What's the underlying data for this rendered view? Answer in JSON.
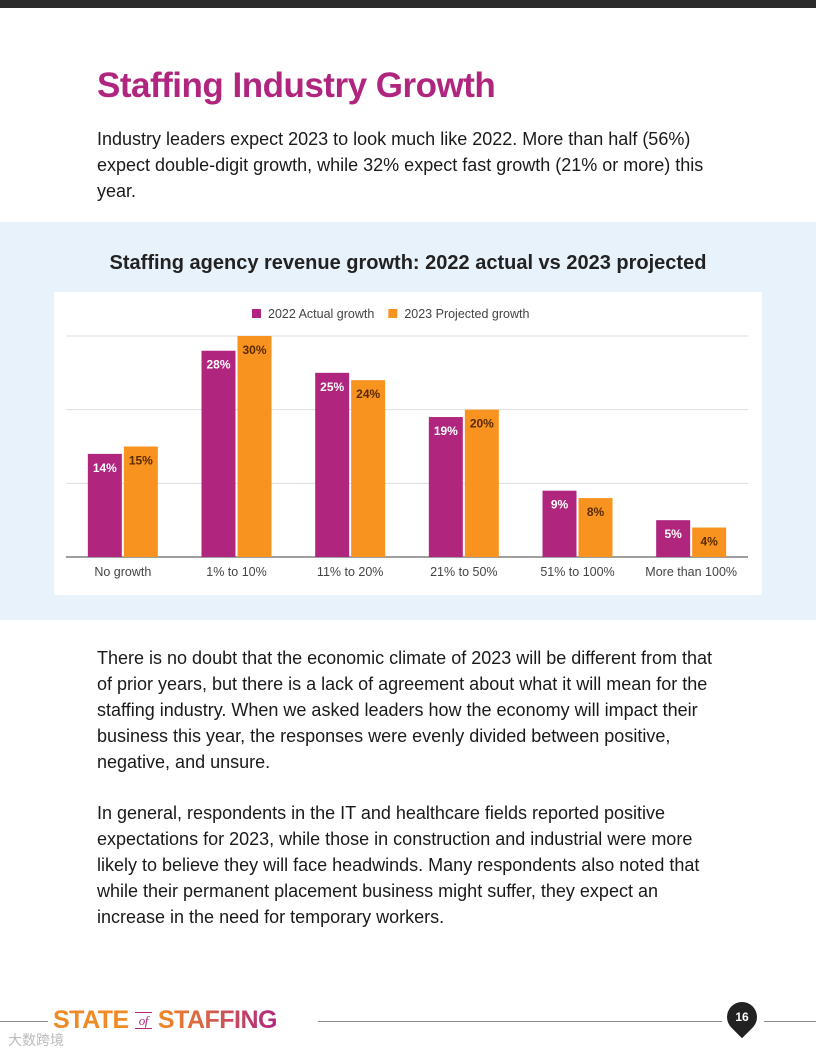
{
  "title": "Staffing Industry Growth",
  "intro": "Industry leaders expect 2023 to look much like 2022. More than half (56%) expect double-digit growth, while 32% expect fast growth (21% or more) this year.",
  "paragraphs": [
    "There is no doubt that the economic climate of 2023 will be different from that of prior years, but there is a lack of agreement about what it will mean for the staffing industry. When we asked leaders how the economy will impact their business this year, the responses were evenly divided between positive, negative, and unsure.",
    "In general, respondents in the IT and healthcare fields reported positive expectations for 2023, while those in construction and industrial were more likely to believe they will face headwinds. Many respondents also noted that while their permanent placement business might suffer, they expect an increase in the need for temporary workers."
  ],
  "footer": {
    "logo_state": "STATE",
    "logo_of": "of",
    "logo_staffing": "STAFFING",
    "page_number": "16",
    "watermark": "大数跨境"
  },
  "chart_data": {
    "type": "bar",
    "title": "Staffing agency revenue growth: 2022 actual vs 2023 projected",
    "categories": [
      "No growth",
      "1% to 10%",
      "11% to 20%",
      "21% to 50%",
      "51% to 100%",
      "More than 100%"
    ],
    "series": [
      {
        "name": "2022 Actual growth",
        "color": "#b0267f",
        "values": [
          14,
          28,
          25,
          19,
          9,
          5
        ]
      },
      {
        "name": "2023 Projected growth",
        "color": "#f7931e",
        "values": [
          15,
          30,
          24,
          20,
          8,
          4
        ]
      }
    ],
    "xlabel": "",
    "ylabel": "",
    "ylim": [
      0,
      30
    ],
    "gridlines": [
      10,
      20,
      30
    ],
    "legend": "top-center"
  }
}
